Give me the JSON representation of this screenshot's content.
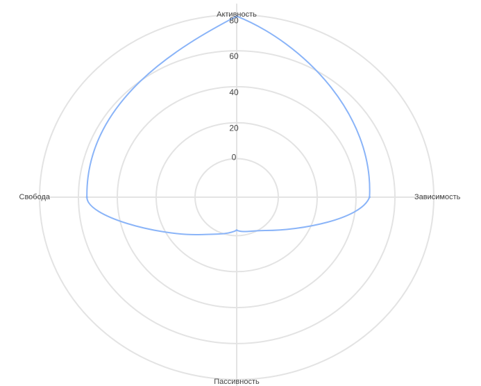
{
  "chart_data": {
    "type": "radar",
    "axes": [
      "Активность",
      "Зависимость",
      "Пассивность",
      "Свобода"
    ],
    "rlim": [
      0,
      80
    ],
    "tick_values": [
      0,
      20,
      40,
      60,
      80
    ],
    "tick_labels": [
      "0",
      "20",
      "40",
      "60",
      "80"
    ],
    "grid": true,
    "legend": "none",
    "series": [
      {
        "values": [
          80,
          48,
          2,
          56
        ],
        "color": "#8ab4f8"
      }
    ]
  },
  "colors": {
    "grid": "#e3e3e3",
    "text": "#444444",
    "series": "#8ab4f8"
  }
}
